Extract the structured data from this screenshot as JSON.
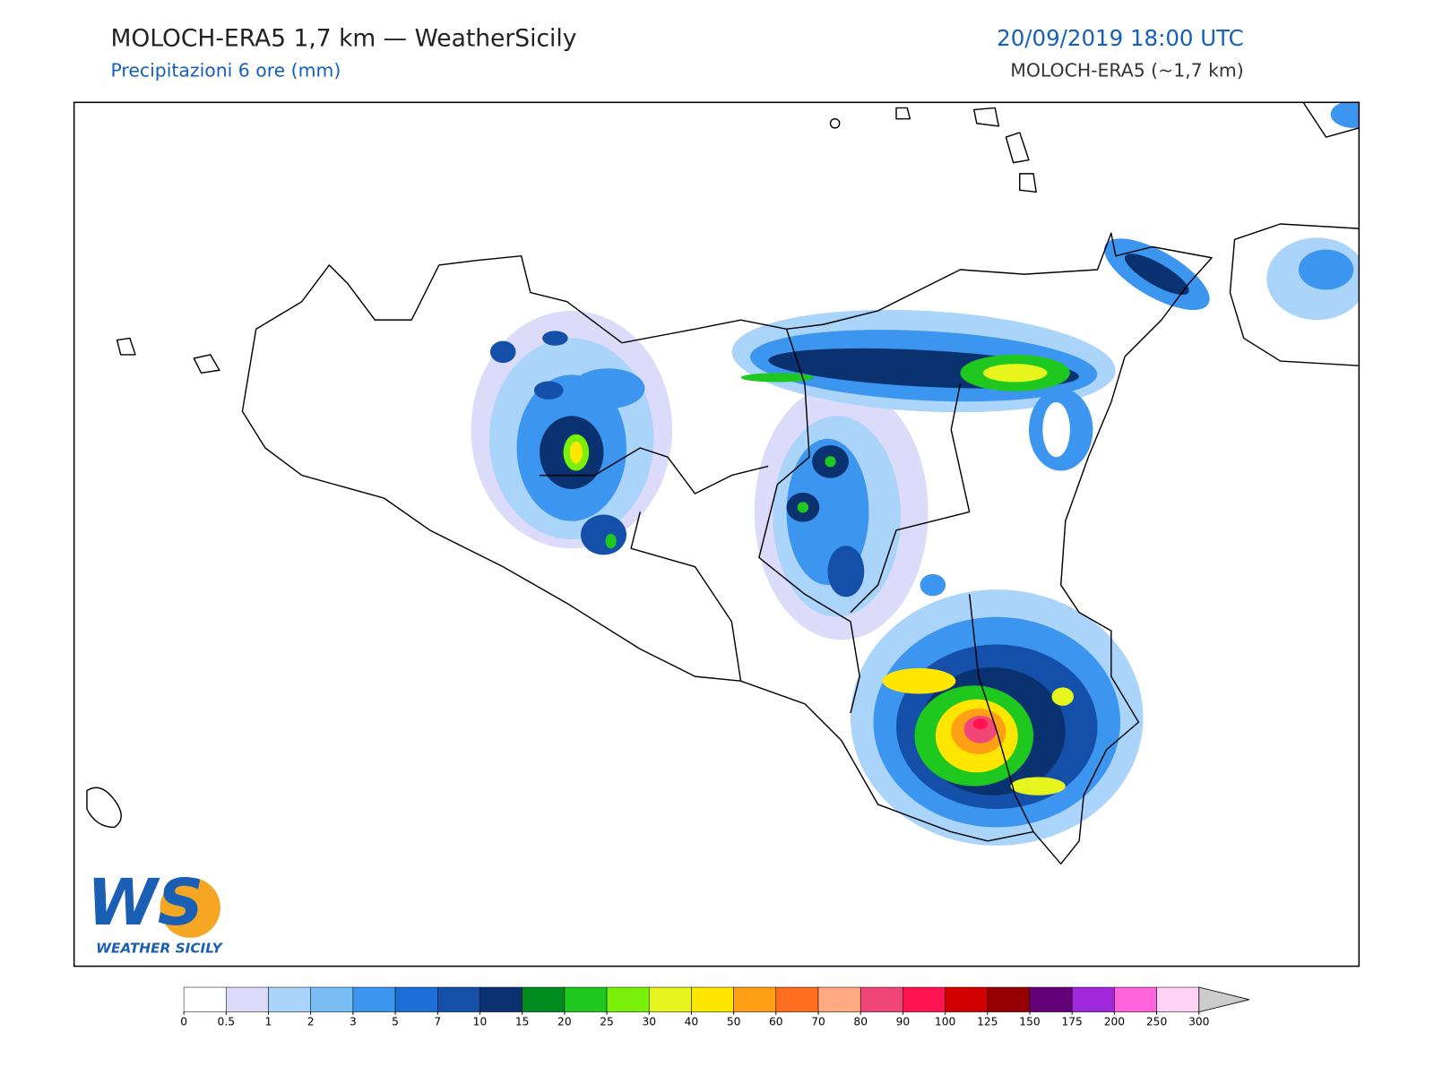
{
  "header": {
    "title": "MOLOCH-ERA5 1,7 km — WeatherSicily",
    "subtitle": "Precipitazioni 6 ore (mm)",
    "date": "20/09/2019 18:00 UTC",
    "model": "MOLOCH-ERA5 (~1,7 km)"
  },
  "logo": {
    "mark": "WS",
    "name": "WEATHER SICILY"
  },
  "colorbar": {
    "levels": [
      0,
      0.5,
      1,
      2,
      3,
      5,
      7,
      10,
      15,
      20,
      25,
      30,
      40,
      50,
      60,
      70,
      80,
      90,
      100,
      125,
      150,
      175,
      200,
      250,
      300
    ],
    "colors": [
      "#ffffff",
      "#dcdcfa",
      "#aad4fa",
      "#78bef5",
      "#3c96f0",
      "#1e6ed7",
      "#1450aa",
      "#0a3270",
      "#008c1e",
      "#1ec81e",
      "#78f00a",
      "#e6f51e",
      "#ffe600",
      "#ffa014",
      "#ff6e1e",
      "#ffaa82",
      "#f04678",
      "#ff1450",
      "#d20000",
      "#960000",
      "#640078",
      "#a028dc",
      "#ff64dc",
      "#ffd2f5"
    ],
    "extend_color": "#cccccc"
  }
}
